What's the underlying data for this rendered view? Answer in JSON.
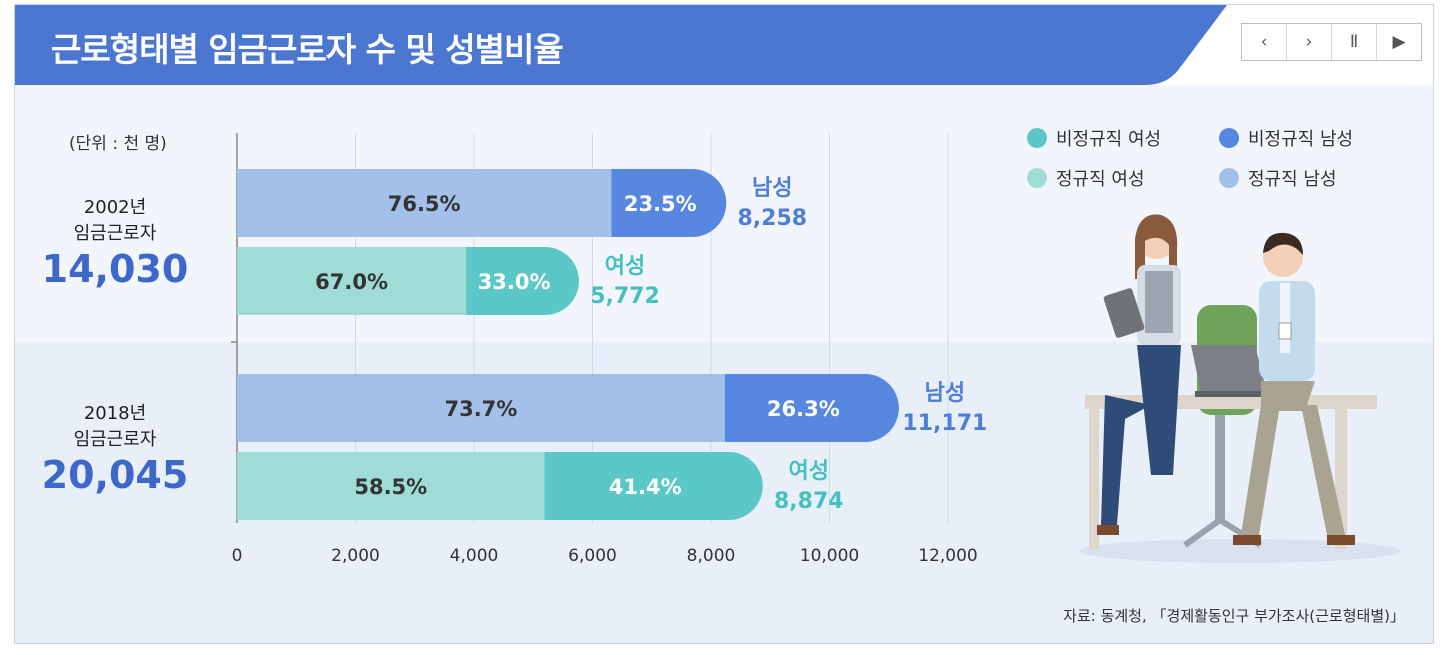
{
  "title": "근로형태별 임금근로자 수 및 성별비율",
  "nav": [
    {
      "name": "prev-button",
      "icon": "chevron-left-icon",
      "glyph": "‹"
    },
    {
      "name": "next-button",
      "icon": "chevron-right-icon",
      "glyph": "›"
    },
    {
      "name": "pause-button",
      "icon": "pause-icon",
      "glyph": "Ⅱ"
    },
    {
      "name": "play-button",
      "icon": "play-icon",
      "glyph": "▶"
    }
  ],
  "unit_label": "(단위 : 천 명)",
  "groups": [
    {
      "year_line1": "2002년",
      "year_line2": "임금근로자",
      "total": "14,030"
    },
    {
      "year_line1": "2018년",
      "year_line2": "임금근로자",
      "total": "20,045"
    }
  ],
  "legend": [
    "비정규직 여성",
    "비정규직 남성",
    "정규직 여성",
    "정규직 남성"
  ],
  "source": "자료: 동계청, 「경제활동인구 부가조사(근로형태별)」",
  "colors": {
    "title_bar": "#4b77d1",
    "regular_male": "#a3c0ea",
    "nonregular_male": "#5887e0",
    "regular_female": "#9edcd5",
    "nonregular_female": "#5cc7c7",
    "male_text": "#4d7fd9",
    "female_text": "#45c0c0"
  },
  "chart_data": {
    "type": "bar",
    "orientation": "horizontal",
    "stacked": true,
    "xlim": [
      0,
      12000
    ],
    "xticks": [
      "0",
      "2,000",
      "4,000",
      "6,000",
      "8,000",
      "10,000",
      "12,000"
    ],
    "bars": [
      {
        "group": "2002년",
        "gender_label": "남성",
        "total": 8258,
        "total_label": "8,258",
        "regular_pct": "76.5",
        "nonregular_pct": "23.5",
        "gender": "male"
      },
      {
        "group": "2002년",
        "gender_label": "여성",
        "total": 5772,
        "total_label": "5,772",
        "regular_pct": "67.0",
        "nonregular_pct": "33.0",
        "gender": "female"
      },
      {
        "group": "2018년",
        "gender_label": "남성",
        "total": 11171,
        "total_label": "11,171",
        "regular_pct": "73.7",
        "nonregular_pct": "26.3",
        "gender": "male"
      },
      {
        "group": "2018년",
        "gender_label": "여성",
        "total": 8874,
        "total_label": "8,874",
        "regular_pct": "58.5",
        "nonregular_pct": "41.4",
        "gender": "female"
      }
    ],
    "pct_suffix": "%"
  }
}
